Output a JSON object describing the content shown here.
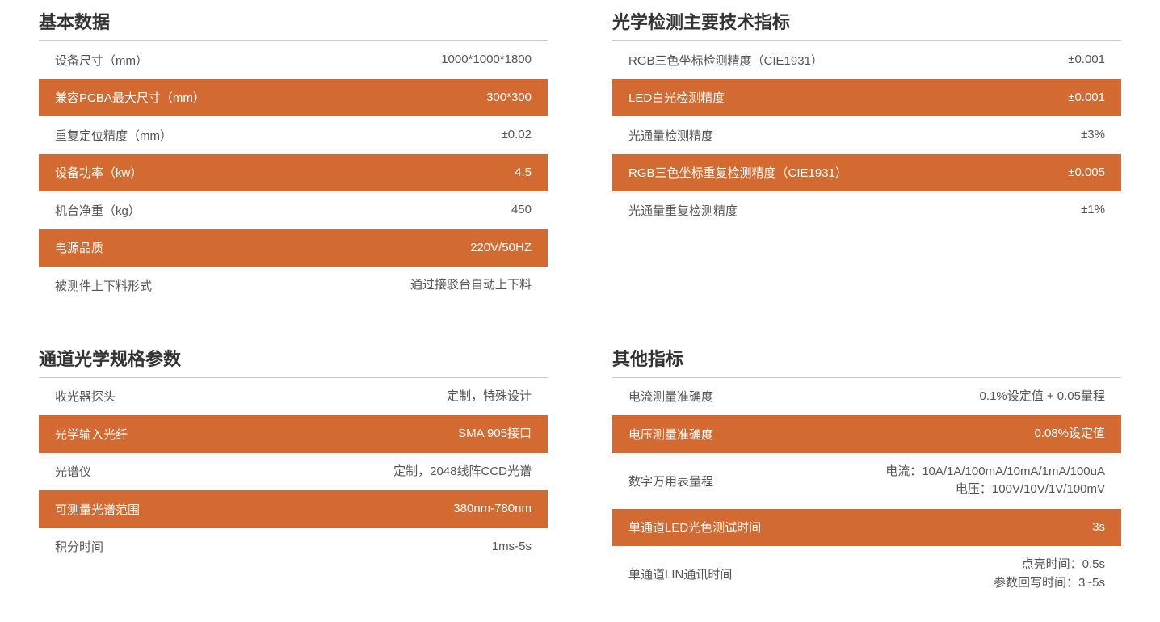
{
  "colors": {
    "highlight_bg": "#d36a32",
    "highlight_text": "#ffffff",
    "normal_bg": "#ffffff",
    "normal_text": "#555555",
    "title_text": "#333333",
    "border": "#cccccc"
  },
  "sections": {
    "basic_data": {
      "title": "基本数据",
      "rows": [
        {
          "label": "设备尺寸（mm）",
          "value": "1000*1000*1800",
          "highlight": false
        },
        {
          "label": "兼容PCBA最大尺寸（mm）",
          "value": "300*300",
          "highlight": true
        },
        {
          "label": "重复定位精度（mm）",
          "value": "±0.02",
          "highlight": false
        },
        {
          "label": "设备功率（kw）",
          "value": "4.5",
          "highlight": true
        },
        {
          "label": "机台净重（kg）",
          "value": "450",
          "highlight": false
        },
        {
          "label": "电源品质",
          "value": "220V/50HZ",
          "highlight": true
        },
        {
          "label": "被测件上下料形式",
          "value": "通过接驳台自动上下料",
          "highlight": false
        }
      ]
    },
    "optical_specs": {
      "title": "光学检测主要技术指标",
      "rows": [
        {
          "label": "RGB三色坐标检测精度（CIE1931）",
          "value": "±0.001",
          "highlight": false
        },
        {
          "label": "LED白光检测精度",
          "value": "±0.001",
          "highlight": true
        },
        {
          "label": "光通量检测精度",
          "value": "±3%",
          "highlight": false
        },
        {
          "label": "RGB三色坐标重复检测精度（CIE1931）",
          "value": "±0.005",
          "highlight": true
        },
        {
          "label": "光通量重复检测精度",
          "value": "±1%",
          "highlight": false
        }
      ]
    },
    "channel_optical": {
      "title": "通道光学规格参数",
      "rows": [
        {
          "label": "收光器探头",
          "value": "定制，特殊设计",
          "highlight": false
        },
        {
          "label": "光学输入光纤",
          "value": "SMA 905接口",
          "highlight": true
        },
        {
          "label": "光谱仪",
          "value": "定制，2048线阵CCD光谱",
          "highlight": false
        },
        {
          "label": "可测量光谱范围",
          "value": "380nm-780nm",
          "highlight": true
        },
        {
          "label": "积分时间",
          "value": "1ms-5s",
          "highlight": false
        }
      ]
    },
    "other_specs": {
      "title": "其他指标",
      "rows": [
        {
          "label": "电流测量准确度",
          "value": "0.1%设定值 + 0.05量程",
          "highlight": false
        },
        {
          "label": "电压测量准确度",
          "value": "0.08%设定值",
          "highlight": true
        },
        {
          "label": "数字万用表量程",
          "value": "电流：10A/1A/100mA/10mA/1mA/100uA\n电压：100V/10V/1V/100mV",
          "highlight": false
        },
        {
          "label": "单通道LED光色测试时间",
          "value": "3s",
          "highlight": true
        },
        {
          "label": "单通道LIN通讯时间",
          "value": "点亮时间：0.5s\n参数回写时间：3~5s",
          "highlight": false
        }
      ]
    }
  }
}
